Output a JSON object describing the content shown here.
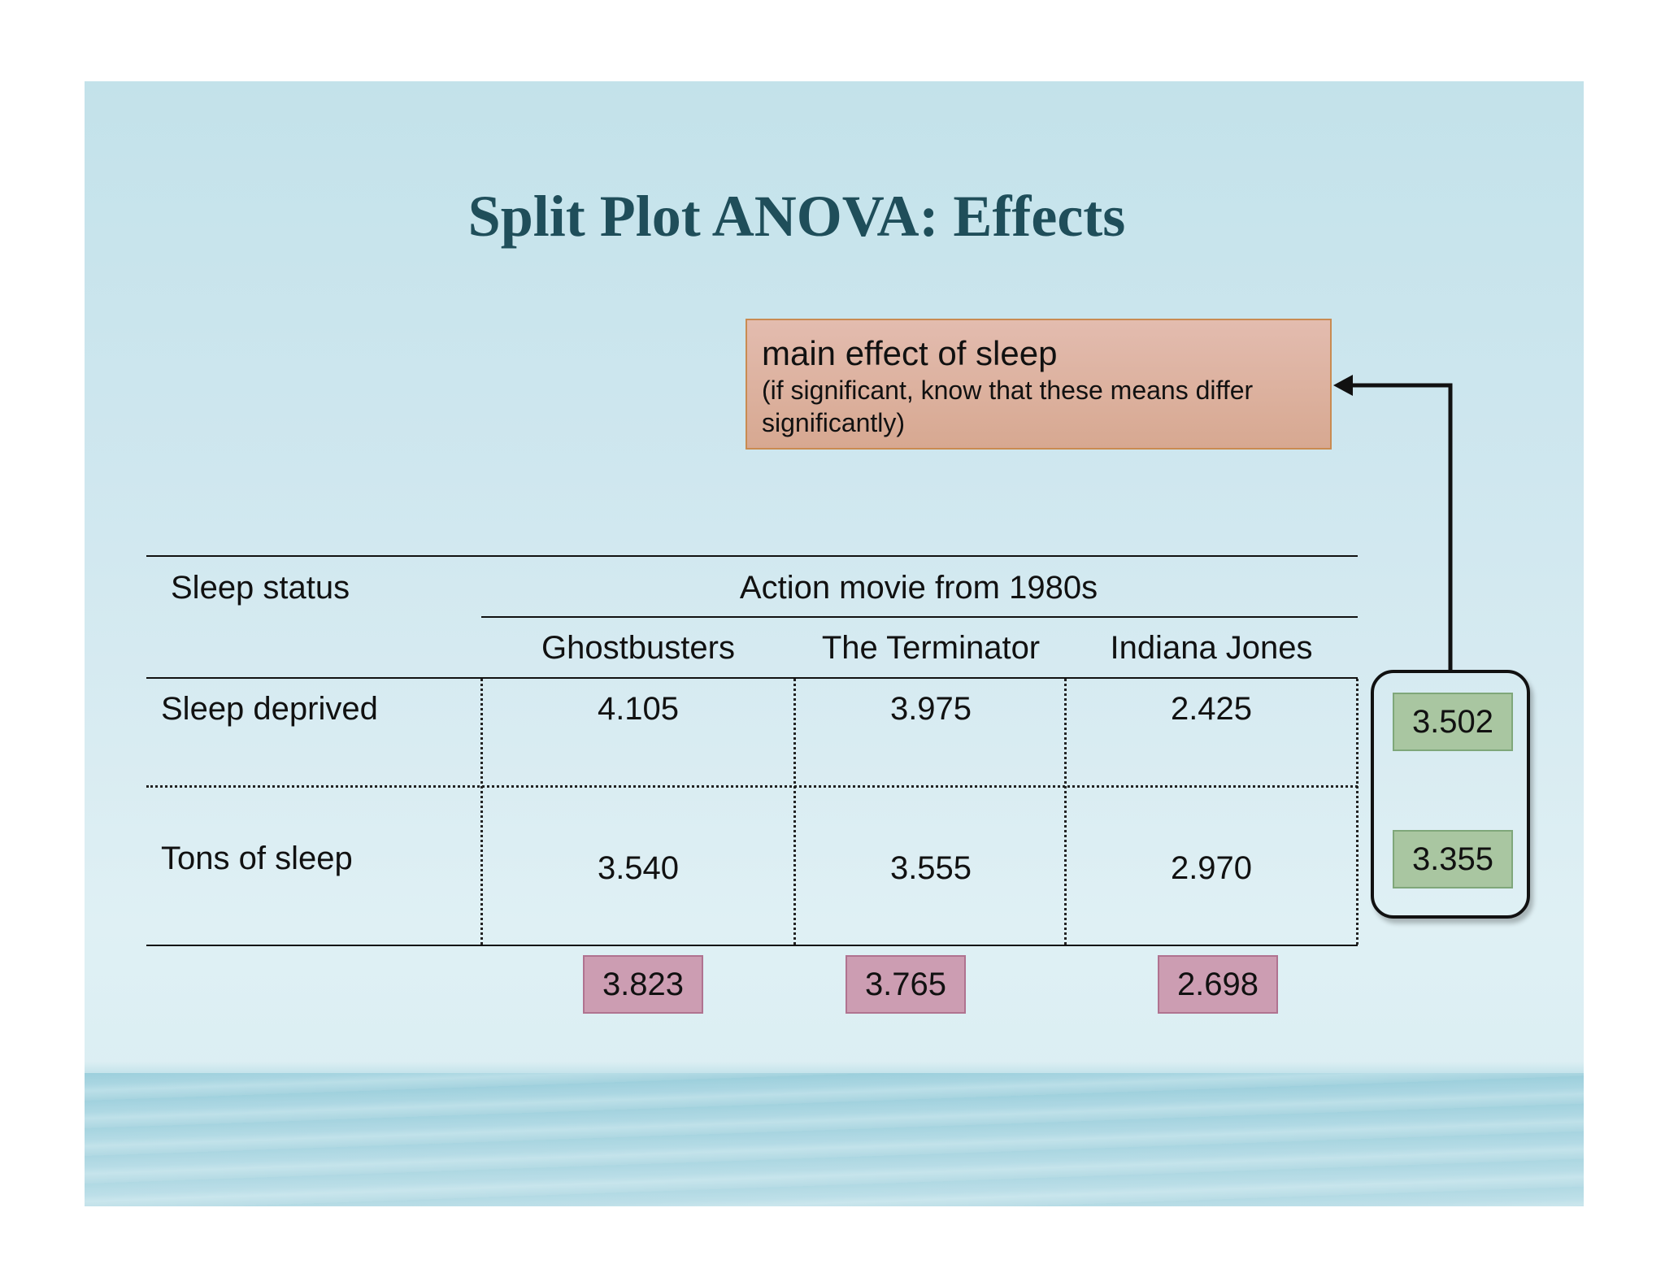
{
  "slide": {
    "title": "Split Plot ANOVA: Effects"
  },
  "callout": {
    "heading": "main effect of sleep",
    "note": "(if significant, know that these means differ significantly)"
  },
  "table": {
    "row_header": "Sleep status",
    "column_group_header": "Action movie from 1980s",
    "columns": [
      "Ghostbusters",
      "The Terminator",
      "Indiana Jones"
    ],
    "rows": [
      {
        "label": "Sleep deprived",
        "values": [
          "4.105",
          "3.975",
          "2.425"
        ]
      },
      {
        "label": "Tons of sleep",
        "values": [
          "3.540",
          "3.555",
          "2.970"
        ]
      }
    ]
  },
  "column_means": [
    "3.823",
    "3.765",
    "2.698"
  ],
  "row_means": [
    "3.502",
    "3.355"
  ],
  "colors": {
    "title": "#1f4e5a",
    "callout_fill": "#dcb09c",
    "column_mean_fill": "#cc9db2",
    "row_mean_fill": "#a9c6a1"
  }
}
